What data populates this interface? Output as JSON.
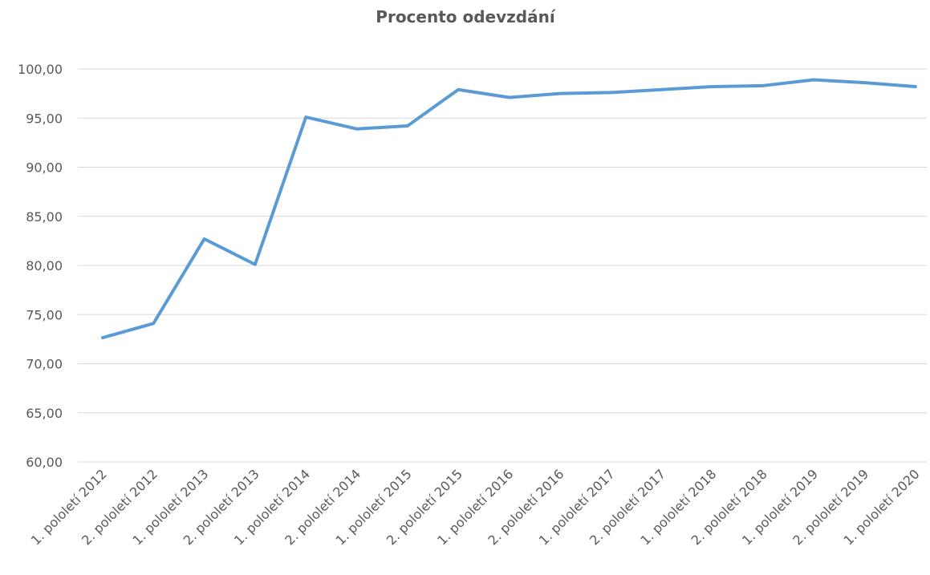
{
  "chart_data": {
    "type": "line",
    "title": "Procento odevzdání",
    "categories": [
      "1. pololetí 2012",
      "2. pololetí 2012",
      "1. pololetí 2013",
      "2. pololetí 2013",
      "1. pololetí 2014",
      "2. pololetí 2014",
      "1. pololetí 2015",
      "2. pololetí 2015",
      "1. pololetí 2016",
      "2. pololetí 2016",
      "1. pololetí 2017",
      "2. pololetí 2017",
      "1. pololetí 2018",
      "2. pololetí 2018",
      "1. pololetí 2019",
      "2. pololetí 2019",
      "1. pololetí 2020"
    ],
    "series": [
      {
        "name": "Procento odevzdání",
        "color": "#5b9bd5",
        "values": [
          72.65,
          74.1,
          82.7,
          80.1,
          95.1,
          93.9,
          94.2,
          97.9,
          97.1,
          97.5,
          97.6,
          97.9,
          98.2,
          98.3,
          98.9,
          98.6,
          98.2
        ]
      }
    ],
    "ylim": [
      60,
      100
    ],
    "yticks": [
      {
        "value": 60,
        "label": "60,00"
      },
      {
        "value": 65,
        "label": "65,00"
      },
      {
        "value": 70,
        "label": "70,00"
      },
      {
        "value": 75,
        "label": "75,00"
      },
      {
        "value": 80,
        "label": "80,00"
      },
      {
        "value": 85,
        "label": "85,00"
      },
      {
        "value": 90,
        "label": "90,00"
      },
      {
        "value": 95,
        "label": "95,00"
      },
      {
        "value": 100,
        "label": "100,00"
      }
    ],
    "grid": true
  }
}
